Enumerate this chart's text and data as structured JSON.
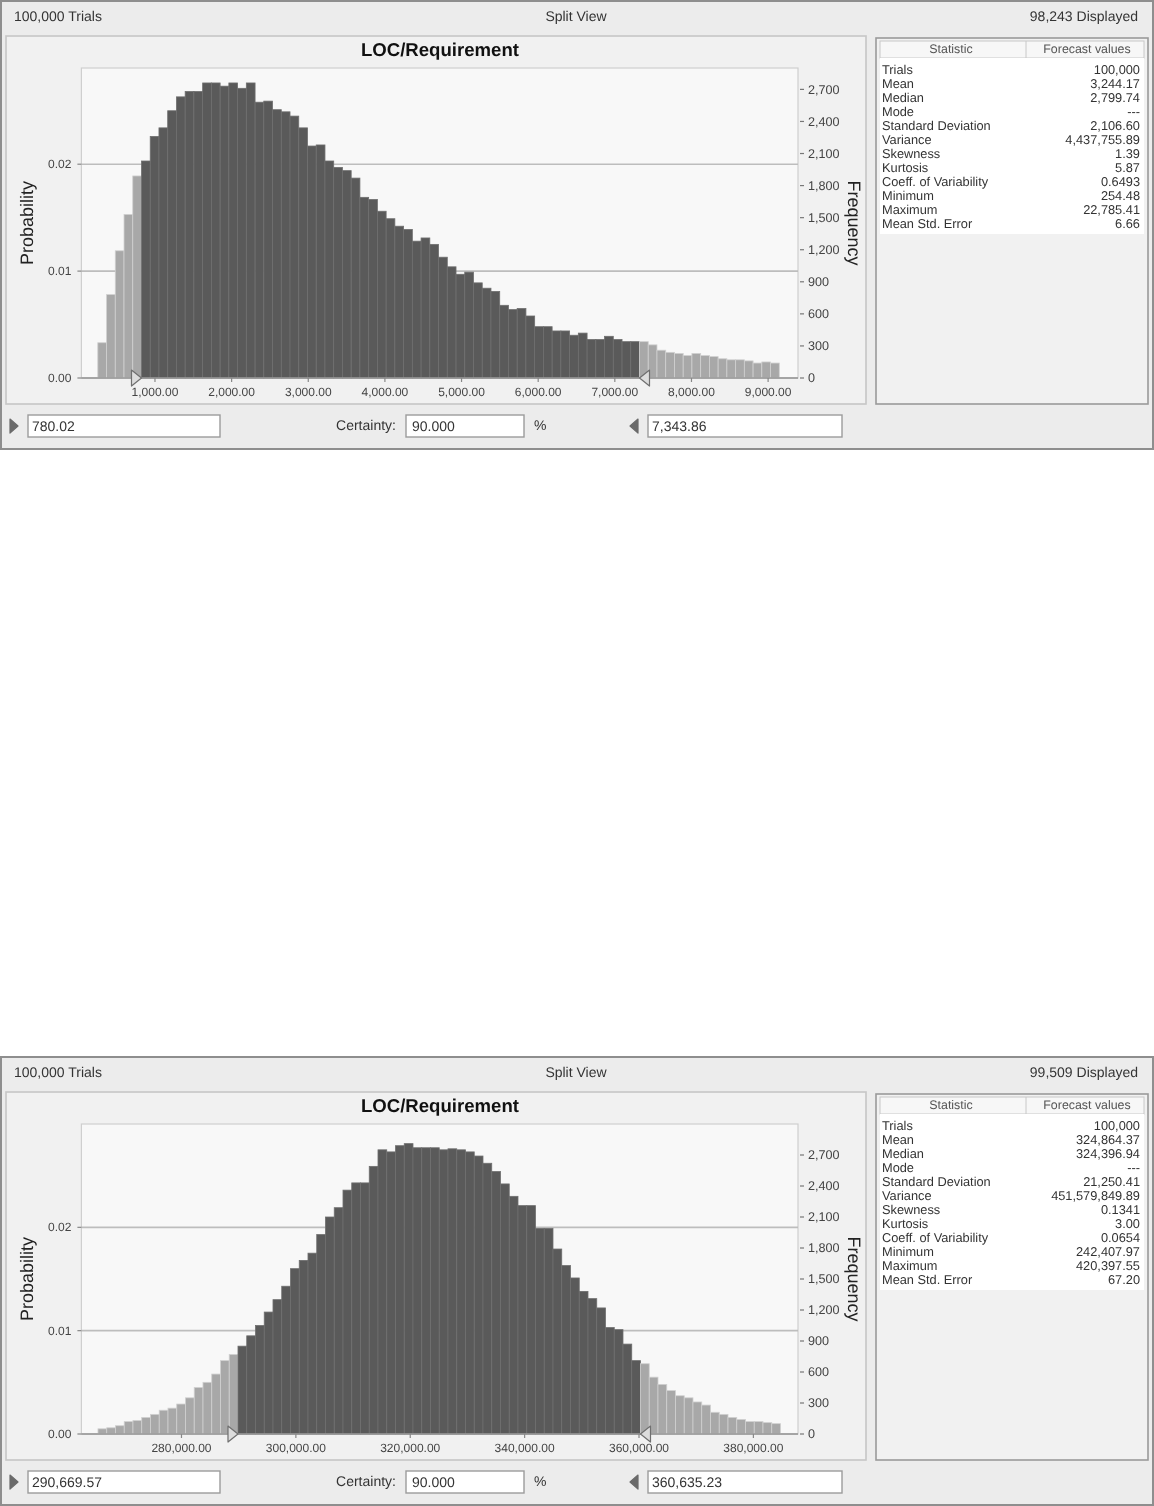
{
  "chart_data": [
    {
      "type": "histogram",
      "title": "LOC/Requirement",
      "ylabel": "Probability",
      "y2label": "Frequency",
      "bins": [
        254,
        368,
        482,
        596,
        710,
        824,
        938,
        1052,
        1166,
        1280,
        1394,
        1508,
        1622,
        1736,
        1850,
        1964,
        2078,
        2192,
        2306,
        2420,
        2534,
        2648,
        2762,
        2876,
        2990,
        3104,
        3218,
        3332,
        3446,
        3560,
        3674,
        3788,
        3902,
        4016,
        4130,
        4244,
        4358,
        4472,
        4586,
        4700,
        4814,
        4928,
        5042,
        5156,
        5270,
        5384,
        5498,
        5612,
        5726,
        5840,
        5954,
        6068,
        6182,
        6296,
        6410,
        6524,
        6638,
        6752,
        6866,
        6980,
        7094,
        7208,
        7322,
        7436,
        7550,
        7664,
        7778,
        7892,
        8006,
        8120,
        8234,
        8348,
        8462,
        8576,
        8690,
        8804,
        8918,
        9032,
        9146
      ],
      "values": [
        0.0033,
        0.0078,
        0.0119,
        0.0153,
        0.0189,
        0.0203,
        0.0226,
        0.0234,
        0.025,
        0.0263,
        0.0268,
        0.0268,
        0.0276,
        0.0276,
        0.0273,
        0.0276,
        0.0271,
        0.0276,
        0.0258,
        0.0259,
        0.0251,
        0.0249,
        0.0245,
        0.0234,
        0.0217,
        0.0218,
        0.0203,
        0.0197,
        0.0194,
        0.0187,
        0.0169,
        0.0167,
        0.0156,
        0.0149,
        0.0142,
        0.0139,
        0.0128,
        0.0131,
        0.0125,
        0.0113,
        0.0104,
        0.0097,
        0.0099,
        0.0089,
        0.0084,
        0.0081,
        0.0068,
        0.0064,
        0.0065,
        0.0058,
        0.0048,
        0.0048,
        0.0044,
        0.0044,
        0.004,
        0.0042,
        0.0036,
        0.0036,
        0.0039,
        0.0036,
        0.0034,
        0.0034,
        0.0034,
        0.0031,
        0.0026,
        0.0024,
        0.0023,
        0.0021,
        0.0023,
        0.0021,
        0.002,
        0.0018,
        0.0017,
        0.0017,
        0.0016,
        0.0014,
        0.0015,
        0.0014
      ],
      "colors": [
        "#a8a8a8",
        "#a8a8a8",
        "#a8a8a8",
        "#a8a8a8",
        "#a8a8a8",
        "#5a5a5a",
        "#5a5a5a",
        "#5a5a5a",
        "#5a5a5a",
        "#5a5a5a",
        "#5a5a5a",
        "#5a5a5a",
        "#5a5a5a",
        "#5a5a5a",
        "#5a5a5a",
        "#5a5a5a",
        "#5a5a5a",
        "#5a5a5a",
        "#5a5a5a",
        "#5a5a5a",
        "#5a5a5a",
        "#5a5a5a",
        "#5a5a5a",
        "#5a5a5a",
        "#5a5a5a",
        "#5a5a5a",
        "#5a5a5a",
        "#5a5a5a",
        "#5a5a5a",
        "#5a5a5a",
        "#5a5a5a",
        "#5a5a5a",
        "#5a5a5a",
        "#5a5a5a",
        "#5a5a5a",
        "#5a5a5a",
        "#5a5a5a",
        "#5a5a5a",
        "#5a5a5a",
        "#5a5a5a",
        "#5a5a5a",
        "#5a5a5a",
        "#5a5a5a",
        "#5a5a5a",
        "#5a5a5a",
        "#5a5a5a",
        "#5a5a5a",
        "#5a5a5a",
        "#5a5a5a",
        "#5a5a5a",
        "#5a5a5a",
        "#5a5a5a",
        "#5a5a5a",
        "#5a5a5a",
        "#5a5a5a",
        "#5a5a5a",
        "#5a5a5a",
        "#5a5a5a",
        "#5a5a5a",
        "#5a5a5a",
        "#5a5a5a",
        "#5a5a5a",
        "#a8a8a8",
        "#a8a8a8",
        "#a8a8a8",
        "#a8a8a8",
        "#a8a8a8",
        "#a8a8a8",
        "#a8a8a8",
        "#a8a8a8",
        "#a8a8a8",
        "#a8a8a8",
        "#a8a8a8",
        "#a8a8a8",
        "#a8a8a8",
        "#a8a8a8",
        "#a8a8a8",
        "#a8a8a8"
      ],
      "xlim": [
        40,
        9390
      ],
      "xticks": [
        {
          "value": 1000,
          "label": "1,000.00"
        },
        {
          "value": 2000,
          "label": "2,000.00"
        },
        {
          "value": 3000,
          "label": "3,000.00"
        },
        {
          "value": 4000,
          "label": "4,000.00"
        },
        {
          "value": 5000,
          "label": "5,000.00"
        },
        {
          "value": 6000,
          "label": "6,000.00"
        },
        {
          "value": 7000,
          "label": "7,000.00"
        },
        {
          "value": 8000,
          "label": "8,000.00"
        },
        {
          "value": 9000,
          "label": "9,000.00"
        }
      ],
      "ylim": [
        0,
        0.029
      ],
      "yticks": [
        {
          "value": 0,
          "label": "0.00"
        },
        {
          "value": 0.01,
          "label": "0.01"
        },
        {
          "value": 0.02,
          "label": "0.02"
        }
      ],
      "y2lim": [
        0,
        2900
      ],
      "y2ticks": [
        0,
        300,
        600,
        900,
        {
          "value": 1200,
          "label": "1,200"
        },
        {
          "value": 1500,
          "label": "1,500"
        },
        {
          "value": 1800,
          "label": "1,800"
        },
        {
          "value": 2100,
          "label": "2,100"
        },
        {
          "value": 2400,
          "label": "2,400"
        },
        {
          "value": 2700,
          "label": "2,700"
        }
      ],
      "grid": "y",
      "annotations": [
        "100,000 Trials",
        "Split View",
        "98,243 Displayed",
        "780.02",
        "Certainty:",
        "90.000",
        "%",
        "7,343.86"
      ]
    },
    {
      "type": "other",
      "annotations": [
        "Statistic",
        "Forecast values",
        "Trials",
        "100,000",
        "Mean",
        "3,244.17",
        "Median",
        "2,799.74",
        "Mode",
        "---",
        "Standard Deviation",
        "2,106.60",
        "Variance",
        "4,437,755.89",
        "Skewness",
        "1.39",
        "Kurtosis",
        "5.87",
        "Coeff. of Variability",
        "0.6493",
        "Minimum",
        "254.48",
        "Maximum",
        "22,785.41",
        "Mean Std. Error",
        "6.66"
      ]
    },
    {
      "type": "histogram",
      "title": "LOC/Requirement",
      "ylabel": "Probability",
      "y2label": "Frequency",
      "bins": [
        265400,
        266930,
        268460,
        269990,
        271520,
        273050,
        274580,
        276110,
        277640,
        279170,
        280700,
        282230,
        283760,
        285290,
        286820,
        288350,
        289880,
        291410,
        292940,
        294470,
        296000,
        297530,
        299060,
        300590,
        302120,
        303650,
        305180,
        306710,
        308240,
        309770,
        311300,
        312830,
        314360,
        315890,
        317420,
        318950,
        320480,
        322010,
        323540,
        325070,
        326600,
        328130,
        329660,
        331190,
        332720,
        334250,
        335780,
        337310,
        338840,
        340370,
        341900,
        343430,
        344960,
        346490,
        348020,
        349550,
        351080,
        352610,
        354140,
        355670,
        357200,
        358730,
        360260,
        361790,
        363320,
        364850,
        366380,
        367910,
        369440,
        370970,
        372500,
        374030,
        375560,
        377090,
        378620,
        380150,
        381680,
        383210,
        384740
      ],
      "values": [
        0.0005,
        0.0006,
        0.0008,
        0.0012,
        0.0013,
        0.0016,
        0.0019,
        0.0023,
        0.0025,
        0.0029,
        0.0035,
        0.0045,
        0.005,
        0.0058,
        0.0071,
        0.0077,
        0.0085,
        0.0095,
        0.0105,
        0.0118,
        0.013,
        0.0143,
        0.016,
        0.0168,
        0.0175,
        0.0193,
        0.021,
        0.0219,
        0.0236,
        0.0243,
        0.0243,
        0.0259,
        0.0275,
        0.0273,
        0.0279,
        0.0281,
        0.0277,
        0.0277,
        0.0277,
        0.0275,
        0.0276,
        0.0275,
        0.0273,
        0.0269,
        0.0262,
        0.0254,
        0.0242,
        0.023,
        0.0221,
        0.0221,
        0.0199,
        0.0199,
        0.0179,
        0.0163,
        0.0151,
        0.0138,
        0.0131,
        0.0122,
        0.0103,
        0.0101,
        0.0087,
        0.0071,
        0.0068,
        0.0055,
        0.0048,
        0.0042,
        0.0037,
        0.0035,
        0.0031,
        0.0028,
        0.0021,
        0.0019,
        0.0016,
        0.0014,
        0.0012,
        0.0012,
        0.0011,
        0.001
      ],
      "colors": [
        "#a8a8a8",
        "#a8a8a8",
        "#a8a8a8",
        "#a8a8a8",
        "#a8a8a8",
        "#a8a8a8",
        "#a8a8a8",
        "#a8a8a8",
        "#a8a8a8",
        "#a8a8a8",
        "#a8a8a8",
        "#a8a8a8",
        "#a8a8a8",
        "#a8a8a8",
        "#a8a8a8",
        "#a8a8a8",
        "#5a5a5a",
        "#5a5a5a",
        "#5a5a5a",
        "#5a5a5a",
        "#5a5a5a",
        "#5a5a5a",
        "#5a5a5a",
        "#5a5a5a",
        "#5a5a5a",
        "#5a5a5a",
        "#5a5a5a",
        "#5a5a5a",
        "#5a5a5a",
        "#5a5a5a",
        "#5a5a5a",
        "#5a5a5a",
        "#5a5a5a",
        "#5a5a5a",
        "#5a5a5a",
        "#5a5a5a",
        "#5a5a5a",
        "#5a5a5a",
        "#5a5a5a",
        "#5a5a5a",
        "#5a5a5a",
        "#5a5a5a",
        "#5a5a5a",
        "#5a5a5a",
        "#5a5a5a",
        "#5a5a5a",
        "#5a5a5a",
        "#5a5a5a",
        "#5a5a5a",
        "#5a5a5a",
        "#5a5a5a",
        "#5a5a5a",
        "#5a5a5a",
        "#5a5a5a",
        "#5a5a5a",
        "#5a5a5a",
        "#5a5a5a",
        "#5a5a5a",
        "#5a5a5a",
        "#5a5a5a",
        "#5a5a5a",
        "#5a5a5a",
        "#a8a8a8",
        "#a8a8a8",
        "#a8a8a8",
        "#a8a8a8",
        "#a8a8a8",
        "#a8a8a8",
        "#a8a8a8",
        "#a8a8a8",
        "#a8a8a8",
        "#a8a8a8",
        "#a8a8a8",
        "#a8a8a8",
        "#a8a8a8",
        "#a8a8a8",
        "#a8a8a8",
        "#a8a8a8"
      ],
      "xlim": [
        262500,
        387800
      ],
      "xticks": [
        {
          "value": 280000,
          "label": "280,000.00"
        },
        {
          "value": 300000,
          "label": "300,000.00"
        },
        {
          "value": 320000,
          "label": "320,000.00"
        },
        {
          "value": 340000,
          "label": "340,000.00"
        },
        {
          "value": 360000,
          "label": "360,000.00"
        },
        {
          "value": 380000,
          "label": "380,000.00"
        }
      ],
      "ylim": [
        0,
        0.03
      ],
      "yticks": [
        {
          "value": 0,
          "label": "0.00"
        },
        {
          "value": 0.01,
          "label": "0.01"
        },
        {
          "value": 0.02,
          "label": "0.02"
        }
      ],
      "y2lim": [
        0,
        3000
      ],
      "y2ticks": [
        0,
        300,
        600,
        900,
        {
          "value": 1200,
          "label": "1,200"
        },
        {
          "value": 1500,
          "label": "1,500"
        },
        {
          "value": 1800,
          "label": "1,800"
        },
        {
          "value": 2100,
          "label": "2,100"
        },
        {
          "value": 2400,
          "label": "2,400"
        },
        {
          "value": 2700,
          "label": "2,700"
        }
      ],
      "grid": "y",
      "annotations": [
        "100,000 Trials",
        "Split View",
        "99,509 Displayed",
        "290,669.57",
        "Certainty:",
        "90.000",
        "%",
        "360,635.23"
      ]
    },
    {
      "type": "other",
      "annotations": [
        "Statistic",
        "Forecast values",
        "Trials",
        "100,000",
        "Mean",
        "324,864.37",
        "Median",
        "324,396.94",
        "Mode",
        "---",
        "Standard Deviation",
        "21,250.41",
        "Variance",
        "451,579,849.89",
        "Skewness",
        "0.1341",
        "Kurtosis",
        "3.00",
        "Coeff. of Variability",
        "0.0654",
        "Minimum",
        "242,407.97",
        "Maximum",
        "420,397.55",
        "Mean Std. Error",
        "67.20"
      ]
    }
  ]
}
